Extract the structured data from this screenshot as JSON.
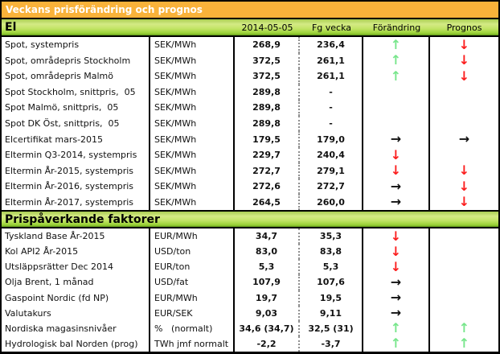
{
  "title": "Veckans prisförändring och prognos",
  "columns": {
    "date": "2014-05-05",
    "prev": "Fg vecka",
    "change": "Förändring",
    "forecast": "Prognos"
  },
  "arrows": {
    "up": "↑",
    "down": "↓",
    "flat": "→",
    "none": ""
  },
  "colors": {
    "up": "#78e68c",
    "down": "#fb1e1e",
    "flat": "#111111",
    "none": "#111111",
    "title_bg": "#f9b23a",
    "band_green": "#9ad238"
  },
  "sections": [
    {
      "label": "El",
      "rows": [
        {
          "name": "Spot, systempris",
          "unit": "SEK/MWh",
          "current": "268,9",
          "previous": "236,4",
          "change": "up",
          "forecast": "down"
        },
        {
          "name": "Spot, områdepris Stockholm",
          "unit": "SEK/MWh",
          "current": "372,5",
          "previous": "261,1",
          "change": "up",
          "forecast": "down"
        },
        {
          "name": "Spot, områdepris Malmö",
          "unit": "SEK/MWh",
          "current": "372,5",
          "previous": "261,1",
          "change": "up",
          "forecast": "down"
        },
        {
          "name": "Spot Stockholm, snittpris,  05",
          "unit": "SEK/MWh",
          "current": "289,8",
          "previous": "-",
          "change": "none",
          "forecast": "none"
        },
        {
          "name": "Spot Malmö, snittpris,  05",
          "unit": "SEK/MWh",
          "current": "289,8",
          "previous": "-",
          "change": "none",
          "forecast": "none"
        },
        {
          "name": "Spot DK Öst, snittpris,  05",
          "unit": "SEK/MWh",
          "current": "289,8",
          "previous": "-",
          "change": "none",
          "forecast": "none"
        },
        {
          "name": "Elcertifikat mars-2015",
          "unit": "SEK/MWh",
          "current": "179,5",
          "previous": "179,0",
          "change": "flat",
          "forecast": "flat"
        },
        {
          "name": "Eltermin Q3-2014, systempris",
          "unit": "SEK/MWh",
          "current": "229,7",
          "previous": "240,4",
          "change": "down",
          "forecast": "none"
        },
        {
          "name": "Eltermin År-2015, systempris",
          "unit": "SEK/MWh",
          "current": "272,7",
          "previous": "279,1",
          "change": "down",
          "forecast": "down"
        },
        {
          "name": "Eltermin År-2016, systempris",
          "unit": "SEK/MWh",
          "current": "272,6",
          "previous": "272,7",
          "change": "flat",
          "forecast": "down"
        },
        {
          "name": "Eltermin År-2017, systempris",
          "unit": "SEK/MWh",
          "current": "264,5",
          "previous": "260,0",
          "change": "flat",
          "forecast": "down"
        }
      ]
    },
    {
      "label": "Prispåverkande faktorer",
      "rows": [
        {
          "name": "Tyskland Base År-2015",
          "unit": "EUR/MWh",
          "current": "34,7",
          "previous": "35,3",
          "change": "down",
          "forecast": "none"
        },
        {
          "name": "Kol API2 År-2015",
          "unit": "USD/ton",
          "current": "83,0",
          "previous": "83,8",
          "change": "down",
          "forecast": "none"
        },
        {
          "name": "Utsläppsrätter Dec 2014",
          "unit": "EUR/ton",
          "current": "5,3",
          "previous": "5,3",
          "change": "down",
          "forecast": "none"
        },
        {
          "name": "Olja Brent, 1 månad",
          "unit": "USD/fat",
          "current": "107,9",
          "previous": "107,6",
          "change": "flat",
          "forecast": "none"
        },
        {
          "name": "Gaspoint Nordic (fd NP)",
          "unit": "EUR/MWh",
          "current": "19,7",
          "previous": "19,5",
          "change": "flat",
          "forecast": "none"
        },
        {
          "name": "Valutakurs",
          "unit": "EUR/SEK",
          "current": "9,03",
          "previous": "9,11",
          "change": "flat",
          "forecast": "none"
        },
        {
          "name": "Nordiska magasinsnivåer",
          "unit": "%   (normalt)",
          "current": "34,6 (34,7)",
          "previous": "32,5 (31)",
          "change": "up",
          "forecast": "up"
        },
        {
          "name": "Hydrologisk bal Norden (prog)",
          "unit": "TWh jmf normalt",
          "current": "-2,2",
          "previous": "-3,7",
          "change": "up",
          "forecast": "up"
        }
      ]
    }
  ]
}
